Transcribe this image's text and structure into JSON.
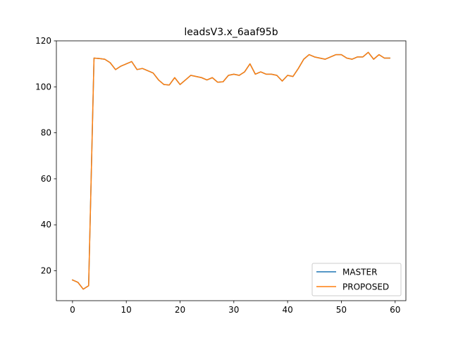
{
  "chart_data": {
    "type": "line",
    "title": "leadsV3.x_6aaf95b",
    "xlabel": "",
    "ylabel": "",
    "xlim": [
      -3,
      62
    ],
    "ylim": [
      7,
      120
    ],
    "x_ticks": [
      0,
      10,
      20,
      30,
      40,
      50,
      60
    ],
    "y_ticks": [
      20,
      40,
      60,
      80,
      100,
      120
    ],
    "grid": false,
    "legend_position": "lower-right",
    "x": [
      0,
      1,
      2,
      3,
      4,
      5,
      6,
      7,
      8,
      9,
      10,
      11,
      12,
      13,
      14,
      15,
      16,
      17,
      18,
      19,
      20,
      21,
      22,
      23,
      24,
      25,
      26,
      27,
      28,
      29,
      30,
      31,
      32,
      33,
      34,
      35,
      36,
      37,
      38,
      39,
      40,
      41,
      42,
      43,
      44,
      45,
      46,
      47,
      48,
      49,
      50,
      51,
      52,
      53,
      54,
      55,
      56,
      57,
      58,
      59
    ],
    "series": [
      {
        "name": "MASTER",
        "color": "#1f77b4",
        "values": [
          16,
          15,
          12,
          13.5,
          112.5,
          112.3,
          112,
          110.5,
          107.5,
          109,
          110,
          111,
          107.5,
          108,
          107,
          106,
          103,
          101,
          100.8,
          104,
          101,
          103,
          105,
          104.5,
          104,
          103,
          104,
          102,
          102.2,
          105,
          105.5,
          105,
          106.5,
          110,
          105.5,
          106.5,
          105.5,
          105.5,
          105,
          102.5,
          105,
          104.5,
          108,
          112,
          114,
          113,
          112.5,
          112,
          113,
          114,
          114,
          112.5,
          112,
          113,
          113,
          115,
          112,
          114,
          112.5,
          112.5
        ]
      },
      {
        "name": "PROPOSED",
        "color": "#ff7f0e",
        "values": [
          16,
          15,
          12,
          13.5,
          112.5,
          112.3,
          112,
          110.5,
          107.5,
          109,
          110,
          111,
          107.5,
          108,
          107,
          106,
          103,
          101,
          100.8,
          104,
          101,
          103,
          105,
          104.5,
          104,
          103,
          104,
          102,
          102.2,
          105,
          105.5,
          105,
          106.5,
          110,
          105.5,
          106.5,
          105.5,
          105.5,
          105,
          102.5,
          105,
          104.5,
          108,
          112,
          114,
          113,
          112.5,
          112,
          113,
          114,
          114,
          112.5,
          112,
          113,
          113,
          115,
          112,
          114,
          112.5,
          112.5
        ]
      }
    ]
  }
}
